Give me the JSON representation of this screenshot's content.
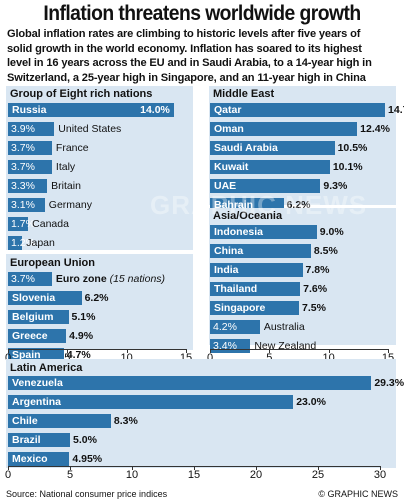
{
  "header": {
    "title": "Inflation threatens worldwide growth",
    "intro_lines": [
      "Global inflation rates are climbing to historic levels after five years of",
      "solid growth in the world economy. Inflation has soared to its highest",
      "level in 16 years across the EU and in Saudi Arabia, to a 14-year high in",
      "Switzerland, a 25-year high in Singapore, and an 11-year high in China"
    ]
  },
  "colors": {
    "bar": "#2d74ab",
    "panel": "#d9e6f2",
    "text": "#111111"
  },
  "chart_data": [
    {
      "type": "bar",
      "orientation": "horizontal",
      "title": "Group of Eight rich nations",
      "categories": [
        "Russia",
        "United States",
        "France",
        "Italy",
        "Britain",
        "Germany",
        "Canada",
        "Japan"
      ],
      "values": [
        14.0,
        3.9,
        3.7,
        3.7,
        3.3,
        3.1,
        1.7,
        1.2
      ],
      "value_labels": [
        "14.0%",
        "3.9%",
        "3.7%",
        "3.7%",
        "3.3%",
        "3.1%",
        "1.7%",
        "1.2%"
      ],
      "xlim": [
        0,
        15
      ]
    },
    {
      "type": "bar",
      "orientation": "horizontal",
      "title": "European Union",
      "categories": [
        "Euro zone",
        "Slovenia",
        "Belgium",
        "Greece",
        "Spain"
      ],
      "category_notes": [
        "(15 nations)",
        "",
        "",
        "",
        ""
      ],
      "values": [
        3.7,
        6.2,
        5.1,
        4.9,
        4.7
      ],
      "value_labels": [
        "3.7%",
        "6.2%",
        "5.1%",
        "4.9%",
        "4.7%"
      ],
      "xlim": [
        0,
        15
      ],
      "x_ticks": [
        0,
        5,
        10,
        15
      ]
    },
    {
      "type": "bar",
      "orientation": "horizontal",
      "title": "Middle East",
      "categories": [
        "Qatar",
        "Oman",
        "Saudi Arabia",
        "Kuwait",
        "UAE",
        "Bahrain"
      ],
      "values": [
        14.75,
        12.4,
        10.5,
        10.1,
        9.3,
        6.2
      ],
      "value_labels": [
        "14.75%",
        "12.4%",
        "10.5%",
        "10.1%",
        "9.3%",
        "6.2%"
      ],
      "xlim": [
        0,
        15
      ]
    },
    {
      "type": "bar",
      "orientation": "horizontal",
      "title": "Asia/Oceania",
      "categories": [
        "Indonesia",
        "China",
        "India",
        "Thailand",
        "Singapore",
        "Australia",
        "New Zealand"
      ],
      "values": [
        9.0,
        8.5,
        7.8,
        7.6,
        7.5,
        4.2,
        3.4
      ],
      "value_labels": [
        "9.0%",
        "8.5%",
        "7.8%",
        "7.6%",
        "7.5%",
        "4.2%",
        "3.4%"
      ],
      "xlim": [
        0,
        15
      ],
      "x_ticks": [
        0,
        5,
        10,
        15
      ]
    },
    {
      "type": "bar",
      "orientation": "horizontal",
      "title": "Latin America",
      "categories": [
        "Venezuela",
        "Argentina",
        "Chile",
        "Brazil",
        "Mexico"
      ],
      "values": [
        29.3,
        23.0,
        8.3,
        5.0,
        4.95
      ],
      "value_labels": [
        "29.3%",
        "23.0%",
        "8.3%",
        "5.0%",
        "4.95%"
      ],
      "xlim": [
        0,
        30
      ],
      "x_ticks": [
        0,
        5,
        10,
        15,
        20,
        25,
        30
      ]
    }
  ],
  "footer": {
    "source": "Source: National consumer price indices",
    "credit": "© GRAPHIC NEWS"
  },
  "watermark": "GRAPHIC NEWS"
}
